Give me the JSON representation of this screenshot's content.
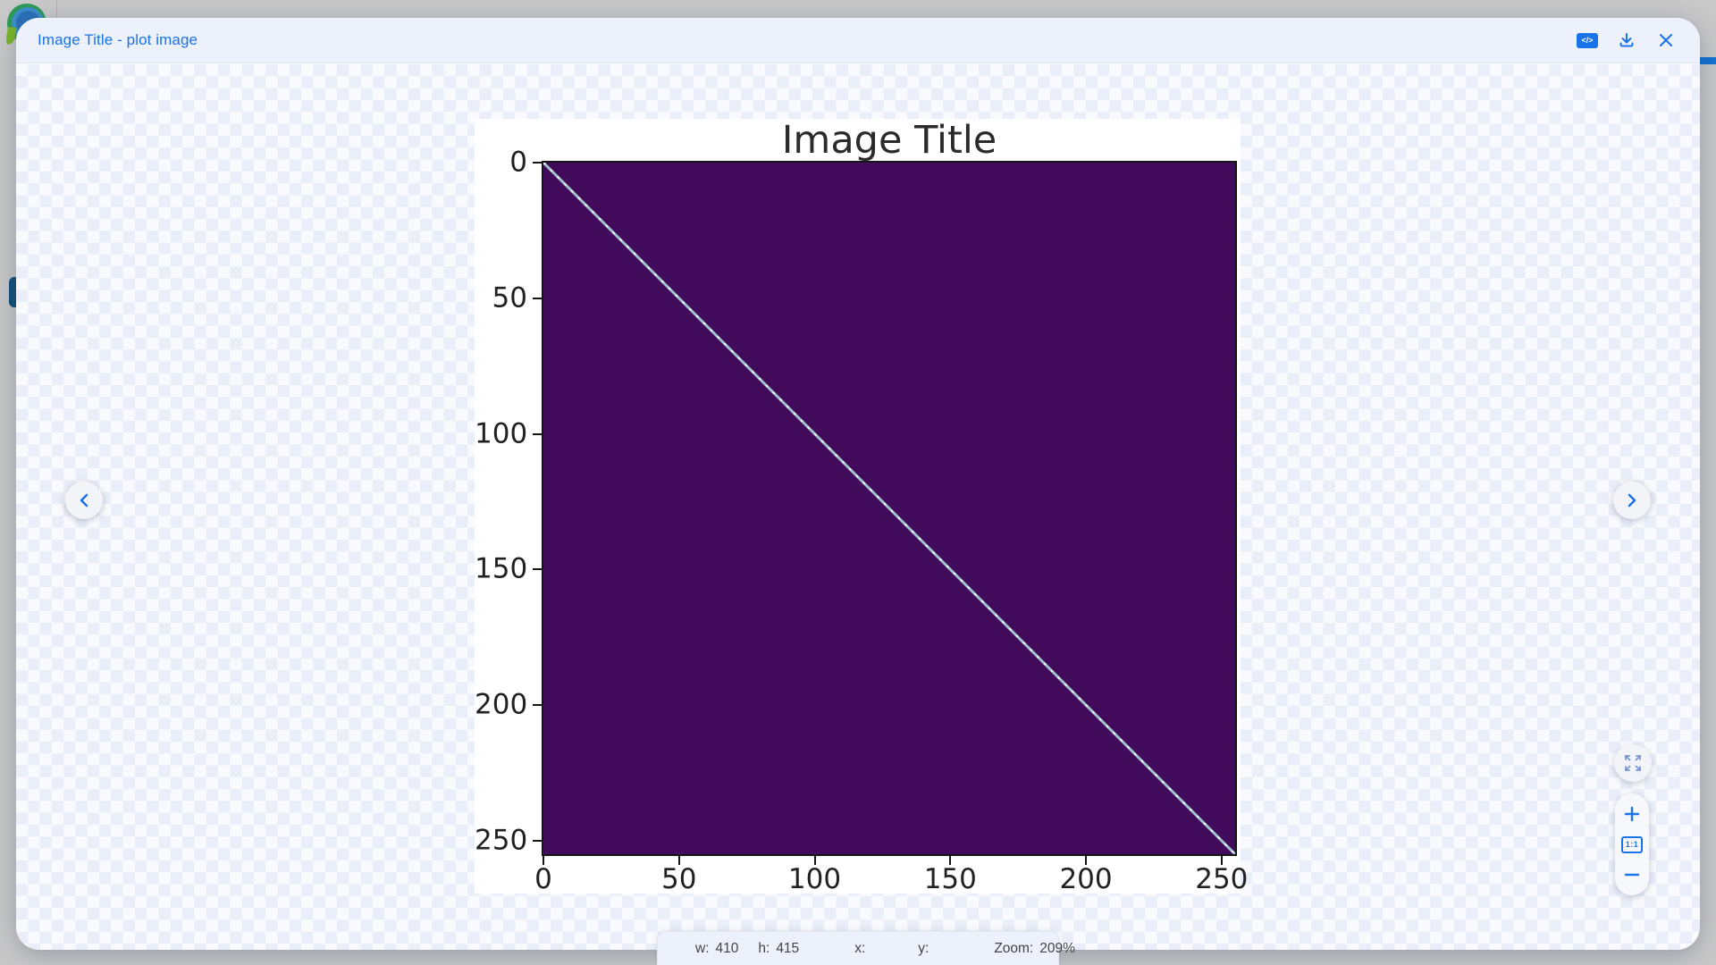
{
  "window": {
    "title": "Image Title - plot image"
  },
  "header": {
    "code_icon_label": "</>",
    "accent_color": "#1a73e8"
  },
  "plot": {
    "title": "Image Title"
  },
  "chart_data": {
    "type": "heatmap",
    "title": "Image Title",
    "x_ticks": [
      0,
      50,
      100,
      150,
      200,
      250
    ],
    "y_ticks": [
      0,
      50,
      100,
      150,
      200,
      250
    ],
    "x_range": [
      0,
      255
    ],
    "y_range": [
      0,
      255
    ],
    "field_color": "#420a5a",
    "diagonal_color": "#9fc4d0",
    "description": "Square matrix image on dark purple field with one light diagonal line from top-left (0,0) to bottom-right (255,255)",
    "grid": false,
    "legend": false
  },
  "statusbar": {
    "w_label": "w:",
    "w_value": "410",
    "h_label": "h:",
    "h_value": "415",
    "x_label": "x:",
    "x_value": "",
    "y_label": "y:",
    "y_value": "",
    "zoom_label": "Zoom:",
    "zoom_value": "209%"
  },
  "controls": {
    "actual_size_label": "1:1",
    "prev": "previous image",
    "next": "next image",
    "colors": {
      "accent": "#1a73e8",
      "heatmap_purple": "#420a5a",
      "diagonal_line": "#9fc4d0",
      "page_gray": "#c9c9c9",
      "chrome_lavender": "#edf1fb",
      "checker_light": "#f9fafd",
      "checker_dark": "#e9eef8"
    }
  }
}
